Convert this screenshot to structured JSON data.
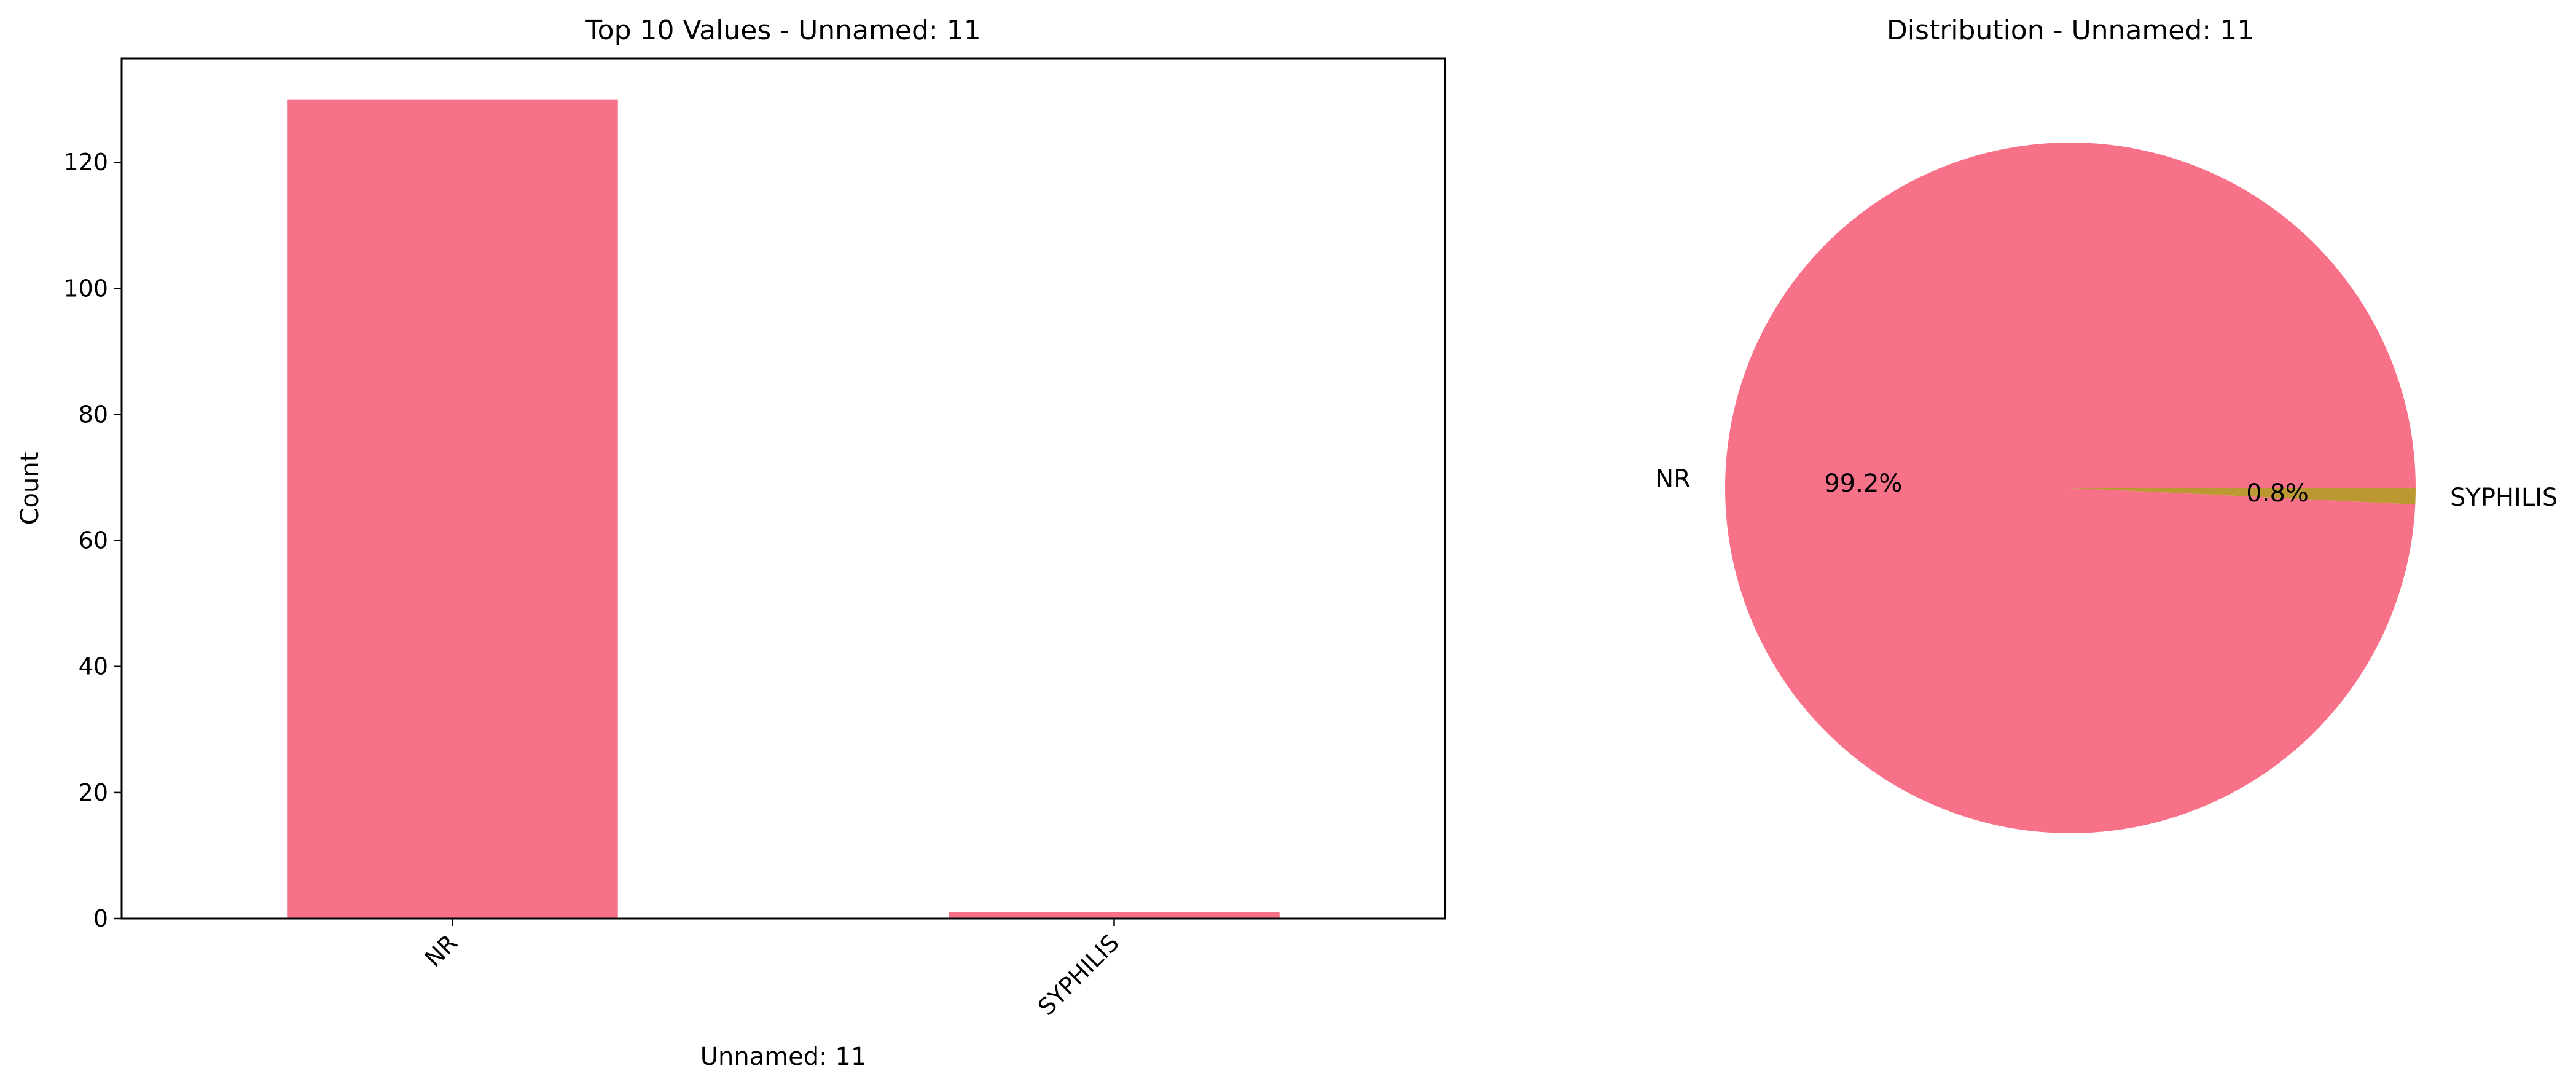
{
  "chart_data": [
    {
      "type": "bar",
      "title": "Top 10 Values - Unnamed: 11",
      "xlabel": "Unnamed: 11",
      "ylabel": "Count",
      "categories": [
        "NR",
        "SYPHILIS"
      ],
      "values": [
        130,
        1
      ],
      "ylim": [
        0,
        136.5
      ],
      "yticks": [
        0,
        20,
        40,
        60,
        80,
        100,
        120
      ],
      "xtick_rotation": 45,
      "color": "#f77189",
      "grid": false
    },
    {
      "type": "pie",
      "title": "Distribution - Unnamed: 11",
      "labels": [
        "NR",
        "SYPHILIS"
      ],
      "values": [
        130,
        1
      ],
      "autopct": [
        "99.2%",
        "0.8%"
      ],
      "colors": [
        "#f77189",
        "#bb9832"
      ]
    }
  ]
}
